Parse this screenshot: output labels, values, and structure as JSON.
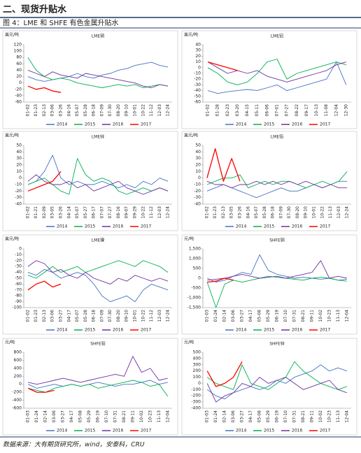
{
  "header": {
    "title": "二、现货升贴水"
  },
  "figure_title": "图 4：LME 和 SHFE 有色金属升贴水",
  "source": "数据来源：大有期货研究所，wind，安泰科，CRU",
  "chart_data": [
    {
      "type": "line",
      "title": "LME铜",
      "y_label": "美元/吨",
      "categories": [
        "01-02",
        "01-23",
        "02-13",
        "03-06",
        "03-26",
        "04-16",
        "05-07",
        "05-28",
        "06-18",
        "07-09",
        "07-30",
        "08-20",
        "09-10",
        "10-01",
        "10-22",
        "11-12",
        "12-03",
        "12-24"
      ],
      "series": [
        {
          "name": "2014",
          "color": "#4472c4",
          "values": [
            20,
            10,
            5,
            10,
            15,
            20,
            30,
            20,
            15,
            25,
            30,
            40,
            45,
            55,
            60,
            65,
            55,
            50
          ]
        },
        {
          "name": "2015",
          "color": "#00b050",
          "values": [
            80,
            40,
            20,
            10,
            15,
            10,
            0,
            -5,
            -10,
            -15,
            -10,
            -5,
            -10,
            -5,
            -15,
            -10,
            -5,
            -10
          ]
        },
        {
          "name": "2016",
          "color": "#7030a0",
          "values": [
            40,
            30,
            20,
            35,
            25,
            20,
            15,
            30,
            25,
            20,
            15,
            10,
            5,
            0,
            -10,
            -15,
            -5,
            -10
          ]
        },
        {
          "name": "2017",
          "color": "#ff0000",
          "values": [
            -10,
            -20,
            -15,
            -25,
            -30,
            null,
            null,
            null,
            null,
            null,
            null,
            null,
            null,
            null,
            null,
            null,
            null,
            null
          ]
        }
      ],
      "ylim": [
        -60,
        120
      ],
      "yticks": [
        -60,
        -40,
        -20,
        0,
        20,
        40,
        60,
        80,
        100,
        120
      ]
    },
    {
      "type": "line",
      "title": "LME铝",
      "y_label": "美元/吨",
      "categories": [
        "01-02",
        "01-28",
        "02-23",
        "03-20",
        "04-15",
        "05-11",
        "06-06",
        "07-01",
        "07-27",
        "08-22",
        "09-17",
        "10-13",
        "11-08",
        "12-04",
        "12-30"
      ],
      "series": [
        {
          "name": "2014",
          "color": "#4472c4",
          "values": [
            -40,
            -45,
            -42,
            -40,
            -38,
            -40,
            -35,
            -30,
            -40,
            -35,
            -30,
            -25,
            -20,
            10,
            -30
          ]
        },
        {
          "name": "2015",
          "color": "#00b050",
          "values": [
            0,
            -10,
            -25,
            -30,
            -25,
            -10,
            10,
            15,
            -20,
            -10,
            -5,
            0,
            5,
            10,
            5
          ]
        },
        {
          "name": "2016",
          "color": "#7030a0",
          "values": [
            10,
            0,
            -10,
            -5,
            -10,
            -5,
            -15,
            -20,
            -25,
            -20,
            -15,
            -10,
            -5,
            5,
            10
          ]
        },
        {
          "name": "2017",
          "color": "#ff0000",
          "values": [
            10,
            5,
            0,
            -5,
            null,
            null,
            null,
            null,
            null,
            null,
            null,
            null,
            null,
            null,
            null
          ]
        }
      ],
      "ylim": [
        -60,
        40
      ],
      "yticks": [
        -60,
        -50,
        -40,
        -30,
        -20,
        -10,
        0,
        10,
        20,
        30,
        40
      ]
    },
    {
      "type": "line",
      "title": "LME锌",
      "y_label": "美元/吨",
      "categories": [
        "01-02",
        "01-21",
        "02-09",
        "03-05",
        "03-26",
        "04-14",
        "05-07",
        "05-27",
        "06-17",
        "07-07",
        "07-27",
        "08-16",
        "09-07",
        "09-29",
        "10-22",
        "11-12",
        "12-03",
        "12-24"
      ],
      "series": [
        {
          "name": "2014",
          "color": "#4472c4",
          "values": [
            -10,
            -5,
            10,
            35,
            0,
            -10,
            -5,
            -10,
            -10,
            -5,
            -10,
            -15,
            -10,
            -15,
            -5,
            -10,
            0,
            -5
          ]
        },
        {
          "name": "2015",
          "color": "#00b050",
          "values": [
            -10,
            -5,
            0,
            -10,
            -20,
            -25,
            30,
            5,
            -5,
            0,
            -5,
            -20,
            -25,
            -20,
            -15,
            -20,
            -15,
            -20
          ]
        },
        {
          "name": "2016",
          "color": "#7030a0",
          "values": [
            -5,
            5,
            -5,
            -10,
            -10,
            -5,
            -15,
            -10,
            -20,
            -15,
            -10,
            -5,
            -15,
            -20,
            -25,
            -20,
            -15,
            -20
          ]
        },
        {
          "name": "2017",
          "color": "#ff0000",
          "values": [
            -20,
            -15,
            -10,
            -5,
            10,
            null,
            null,
            null,
            null,
            null,
            null,
            null,
            null,
            null,
            null,
            null,
            null,
            null
          ]
        }
      ],
      "ylim": [
        -40,
        50
      ],
      "yticks": [
        -40,
        -30,
        -20,
        -10,
        0,
        10,
        20,
        30,
        40,
        50
      ]
    },
    {
      "type": "line",
      "title": "LME铅",
      "y_label": "美元/吨",
      "categories": [
        "01-02",
        "01-23",
        "02-13",
        "03-05",
        "03-26",
        "04-16",
        "05-07",
        "05-28",
        "06-18",
        "07-09",
        "07-30",
        "08-20",
        "09-10",
        "10-01",
        "10-22",
        "11-13",
        "12-03",
        "12-24"
      ],
      "series": [
        {
          "name": "2014",
          "color": "#4472c4",
          "values": [
            -20,
            -15,
            -10,
            -15,
            -20,
            -25,
            -30,
            -25,
            -20,
            -15,
            -20,
            -20,
            -15,
            -10,
            -15,
            -10,
            -5,
            -5
          ]
        },
        {
          "name": "2015",
          "color": "#00b050",
          "values": [
            -10,
            -5,
            0,
            0,
            5,
            -15,
            -10,
            -5,
            -10,
            -5,
            -5,
            -10,
            -15,
            -10,
            -5,
            -10,
            -5,
            10
          ]
        },
        {
          "name": "2016",
          "color": "#7030a0",
          "values": [
            -5,
            -10,
            -10,
            -15,
            -10,
            -10,
            -5,
            -10,
            -5,
            -10,
            -5,
            -10,
            -5,
            -10,
            -15,
            -10,
            -15,
            -15
          ]
        },
        {
          "name": "2017",
          "color": "#ff0000",
          "values": [
            0,
            45,
            -5,
            30,
            -5,
            null,
            null,
            null,
            null,
            null,
            null,
            null,
            null,
            null,
            null,
            null,
            null,
            null
          ]
        }
      ],
      "ylim": [
        -40,
        50
      ],
      "yticks": [
        -40,
        -30,
        -20,
        -10,
        0,
        10,
        20,
        30,
        40,
        50
      ]
    },
    {
      "type": "line",
      "title": "LME镍",
      "y_label": "美元/吨",
      "categories": [
        "01-02",
        "01-23",
        "02-13",
        "03-06",
        "03-27",
        "04-17",
        "05-07",
        "05-28",
        "06-18",
        "07-09",
        "07-30",
        "08-20",
        "09-10",
        "10-01",
        "10-22",
        "11-12",
        "12-03",
        "12-24"
      ],
      "series": [
        {
          "name": "2014",
          "color": "#4472c4",
          "values": [
            -40,
            -45,
            -35,
            -40,
            -50,
            -45,
            -40,
            -45,
            -60,
            -80,
            -90,
            -85,
            -80,
            -90,
            -70,
            -60,
            -65,
            -70
          ]
        },
        {
          "name": "2015",
          "color": "#00b050",
          "values": [
            -45,
            -50,
            -40,
            -30,
            -40,
            -35,
            -30,
            -40,
            -35,
            -30,
            -25,
            -20,
            -25,
            -30,
            -20,
            -25,
            -30,
            -40
          ]
        },
        {
          "name": "2016",
          "color": "#7030a0",
          "values": [
            -30,
            -20,
            -25,
            -40,
            -35,
            -45,
            -50,
            -40,
            -50,
            -55,
            -60,
            -50,
            -55,
            -45,
            -50,
            -55,
            -50,
            -55
          ]
        },
        {
          "name": "2017",
          "color": "#ff0000",
          "values": [
            -70,
            -60,
            -55,
            -65,
            -60,
            null,
            null,
            null,
            null,
            null,
            null,
            null,
            null,
            null,
            null,
            null,
            null,
            null
          ]
        }
      ],
      "ylim": [
        -100,
        0
      ],
      "yticks": [
        -100,
        -90,
        -80,
        -70,
        -60,
        -50,
        -40,
        -30,
        -20,
        -10,
        0
      ]
    },
    {
      "type": "line",
      "title": "SHFE铜",
      "y_label": "元/吨",
      "categories": [
        "01-03",
        "01-24",
        "02-14",
        "03-06",
        "03-27",
        "04-17",
        "05-08",
        "05-29",
        "06-19",
        "07-10",
        "07-31",
        "08-21",
        "09-11",
        "10-02",
        "10-23",
        "11-13",
        "12-04"
      ],
      "series": [
        {
          "name": "2014",
          "color": "#4472c4",
          "values": [
            0,
            -200,
            -100,
            100,
            300,
            200,
            1200,
            400,
            200,
            100,
            0,
            50,
            0,
            -50,
            0,
            -100,
            -50
          ]
        },
        {
          "name": "2015",
          "color": "#00b050",
          "values": [
            -200,
            -1500,
            -300,
            -100,
            -200,
            -100,
            0,
            100,
            50,
            0,
            -50,
            -100,
            0,
            50,
            0,
            -100,
            -150
          ]
        },
        {
          "name": "2016",
          "color": "#7030a0",
          "values": [
            -100,
            -50,
            0,
            100,
            200,
            100,
            0,
            50,
            100,
            0,
            100,
            200,
            300,
            900,
            0,
            100,
            0
          ]
        },
        {
          "name": "2017",
          "color": "#ff0000",
          "values": [
            -200,
            -150,
            0,
            -100,
            null,
            null,
            null,
            null,
            null,
            null,
            null,
            null,
            null,
            null,
            null,
            null,
            null
          ]
        }
      ],
      "ylim": [
        -1500,
        1500
      ],
      "yticks": [
        {
          "value": -1500,
          "label": "-1,500"
        },
        {
          "value": -1000,
          "label": "-1,000"
        },
        -500,
        0,
        500,
        {
          "value": 1000,
          "label": "1,000"
        },
        {
          "value": 1500,
          "label": "1,500"
        }
      ]
    },
    {
      "type": "line",
      "title": "SHFE铅",
      "y_label": "元/吨",
      "categories": [
        "01-03",
        "01-24",
        "02-14",
        "03-06",
        "03-27",
        "04-17",
        "05-08",
        "05-29",
        "06-19",
        "07-10",
        "07-31",
        "08-21",
        "09-11",
        "10-02",
        "10-23",
        "11-13",
        "12-04"
      ],
      "series": [
        {
          "name": "2014",
          "color": "#4472c4",
          "values": [
            0,
            -100,
            -50,
            0,
            -50,
            0,
            -50,
            0,
            50,
            0,
            -50,
            0,
            0,
            50,
            100,
            0,
            50
          ]
        },
        {
          "name": "2015",
          "color": "#00b050",
          "values": [
            -100,
            -150,
            -200,
            -100,
            -50,
            0,
            -50,
            0,
            -100,
            -50,
            0,
            50,
            100,
            50,
            -50,
            0,
            -300
          ]
        },
        {
          "name": "2016",
          "color": "#7030a0",
          "values": [
            50,
            0,
            50,
            100,
            150,
            100,
            50,
            100,
            150,
            200,
            250,
            200,
            700,
            300,
            400,
            100,
            150
          ]
        },
        {
          "name": "2017",
          "color": "#ff0000",
          "values": [
            -100,
            -200,
            -200,
            -150,
            null,
            null,
            null,
            null,
            null,
            null,
            null,
            null,
            null,
            null,
            null,
            null,
            null
          ]
        }
      ],
      "ylim": [
        -600,
        800
      ],
      "yticks": [
        -600,
        -400,
        -200,
        0,
        200,
        400,
        600,
        800
      ]
    },
    {
      "type": "line",
      "title": "SHFE锌",
      "y_label": "元/吨",
      "categories": [
        "01-03",
        "01-24",
        "02-14",
        "03-06",
        "03-27",
        "04-17",
        "05-08",
        "05-29",
        "06-19",
        "07-10",
        "07-31",
        "08-21",
        "09-11",
        "10-02",
        "10-23",
        "11-13",
        "12-04"
      ],
      "series": [
        {
          "name": "2014",
          "color": "#4472c4",
          "values": [
            -100,
            -200,
            -250,
            -150,
            -100,
            -50,
            -100,
            -50,
            50,
            0,
            100,
            150,
            200,
            300,
            200,
            250,
            200
          ]
        },
        {
          "name": "2015",
          "color": "#00b050",
          "values": [
            100,
            0,
            -50,
            -100,
            300,
            0,
            -50,
            -100,
            0,
            100,
            350,
            200,
            100,
            0,
            -50,
            -100,
            -50
          ]
        },
        {
          "name": "2016",
          "color": "#7030a0",
          "values": [
            0,
            -300,
            -200,
            -150,
            0,
            -50,
            100,
            0,
            50,
            100,
            0,
            -100,
            -50,
            0,
            50,
            -100,
            -150
          ]
        },
        {
          "name": "2017",
          "color": "#ff0000",
          "values": [
            200,
            -50,
            0,
            100,
            350,
            null,
            null,
            null,
            null,
            null,
            null,
            null,
            null,
            null,
            null,
            null,
            null
          ]
        }
      ],
      "ylim": [
        -400,
        500
      ],
      "yticks": [
        -400,
        -300,
        -200,
        -100,
        0,
        100,
        200,
        300,
        400,
        500
      ]
    }
  ]
}
